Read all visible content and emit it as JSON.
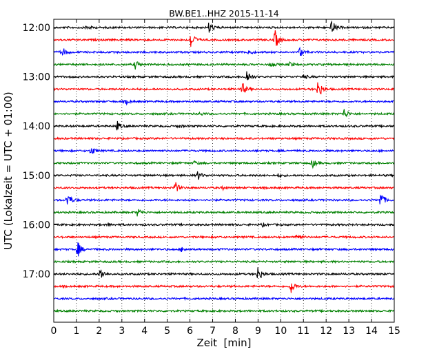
{
  "chart_data": {
    "type": "line",
    "title": "BW.BE1..HHZ 2015-11-14",
    "xlabel": "Zeit  [min]",
    "ylabel": "UTC (Lokalzeit = UTC + 01:00)",
    "xlim": [
      0,
      15
    ],
    "x_ticks": [
      "0",
      "1",
      "2",
      "3",
      "4",
      "5",
      "6",
      "7",
      "8",
      "9",
      "10",
      "11",
      "12",
      "13",
      "14",
      "15"
    ],
    "y_ticks": [
      "12:00",
      "13:00",
      "14:00",
      "15:00",
      "16:00",
      "17:00"
    ],
    "grid_x": "dotted",
    "trace_colors": [
      "#000000",
      "#ff0000",
      "#0000ff",
      "#008000"
    ],
    "traces": [
      {
        "start": "12:00",
        "events": [
          [
            1.45,
            0.3
          ],
          [
            6.85,
            0.9
          ],
          [
            12.25,
            1.0
          ]
        ]
      },
      {
        "start": "12:15",
        "events": [
          [
            6.05,
            1.3
          ],
          [
            9.75,
            1.3
          ]
        ]
      },
      {
        "start": "12:30",
        "events": [
          [
            0.35,
            0.8
          ],
          [
            8.55,
            0.4
          ],
          [
            10.85,
            0.7
          ]
        ]
      },
      {
        "start": "12:45",
        "events": [
          [
            3.6,
            0.6
          ],
          [
            9.55,
            0.4
          ],
          [
            10.4,
            0.3
          ]
        ]
      },
      {
        "start": "13:00",
        "events": [
          [
            8.5,
            1.0
          ],
          [
            11.0,
            0.3
          ]
        ]
      },
      {
        "start": "13:15",
        "events": [
          [
            8.3,
            0.9
          ],
          [
            11.65,
            1.4
          ]
        ]
      },
      {
        "start": "13:30",
        "events": [
          [
            3.2,
            0.3
          ]
        ]
      },
      {
        "start": "13:45",
        "events": [
          [
            6.45,
            0.2
          ],
          [
            12.8,
            0.7
          ]
        ]
      },
      {
        "start": "14:00",
        "events": [
          [
            2.8,
            0.6
          ],
          [
            5.5,
            0.2
          ]
        ]
      },
      {
        "start": "14:15",
        "events": []
      },
      {
        "start": "14:30",
        "events": [
          [
            1.65,
            0.6
          ]
        ]
      },
      {
        "start": "14:45",
        "events": [
          [
            6.2,
            0.25
          ],
          [
            11.4,
            0.6
          ]
        ]
      },
      {
        "start": "15:00",
        "events": [
          [
            6.35,
            0.6
          ],
          [
            9.9,
            0.2
          ]
        ]
      },
      {
        "start": "15:15",
        "events": [
          [
            5.35,
            0.8
          ],
          [
            7.45,
            0.2
          ]
        ]
      },
      {
        "start": "15:30",
        "events": [
          [
            0.6,
            1.1
          ],
          [
            14.4,
            1.2
          ]
        ]
      },
      {
        "start": "15:45",
        "events": [
          [
            3.7,
            0.6
          ]
        ]
      },
      {
        "start": "16:00",
        "events": [
          [
            2.4,
            0.2
          ],
          [
            9.2,
            0.2
          ]
        ]
      },
      {
        "start": "16:15",
        "events": [
          [
            10.7,
            0.5
          ]
        ]
      },
      {
        "start": "16:30",
        "events": [
          [
            1.05,
            1.1
          ],
          [
            5.65,
            0.3
          ]
        ]
      },
      {
        "start": "16:45",
        "events": []
      },
      {
        "start": "17:00",
        "events": [
          [
            2.05,
            0.9
          ],
          [
            9.0,
            1.1
          ]
        ]
      },
      {
        "start": "17:15",
        "events": [
          [
            10.45,
            1.0
          ]
        ]
      },
      {
        "start": "17:30",
        "events": []
      },
      {
        "start": "17:45",
        "events": []
      }
    ]
  }
}
